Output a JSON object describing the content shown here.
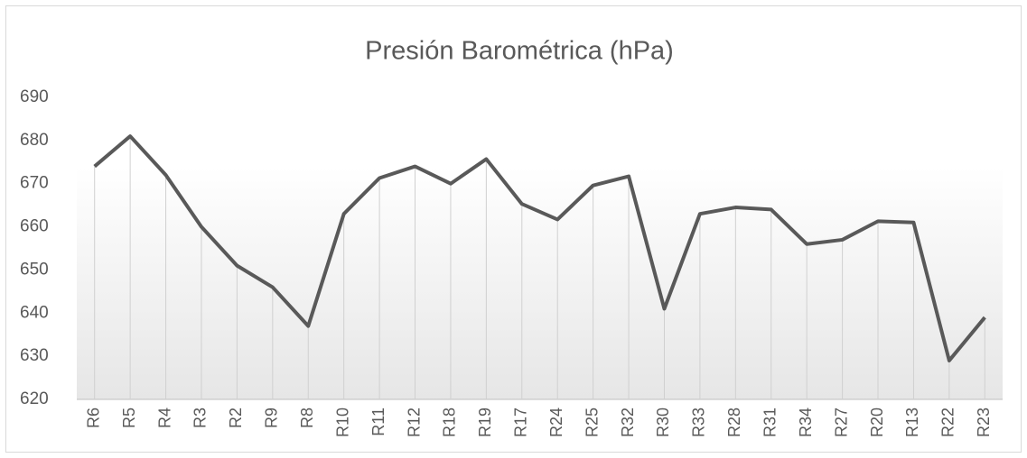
{
  "chart_data": {
    "type": "line",
    "title": "Presión Barométrica  (hPa)",
    "categories": [
      "R6",
      "R5",
      "R4",
      "R3",
      "R2",
      "R9",
      "R8",
      "R10",
      "R11",
      "R12",
      "R18",
      "R19",
      "R17",
      "R24",
      "R25",
      "R32",
      "R30",
      "R33",
      "R28",
      "R31",
      "R34",
      "R27",
      "R20",
      "R13",
      "R22",
      "R23"
    ],
    "series": [
      {
        "name": "Presión Barométrica (hPa)",
        "color": "#595959",
        "values": [
          674,
          681,
          672,
          660,
          651,
          646,
          637,
          663,
          671.3,
          674,
          670,
          675.7,
          665.3,
          661.7,
          669.6,
          671.7,
          641,
          663,
          664.5,
          664,
          656,
          657,
          661.3,
          661,
          629,
          639
        ]
      }
    ],
    "ylim": [
      620,
      690
    ],
    "yticks": [
      620,
      630,
      640,
      650,
      660,
      670,
      680,
      690
    ],
    "drop_lines": true
  }
}
